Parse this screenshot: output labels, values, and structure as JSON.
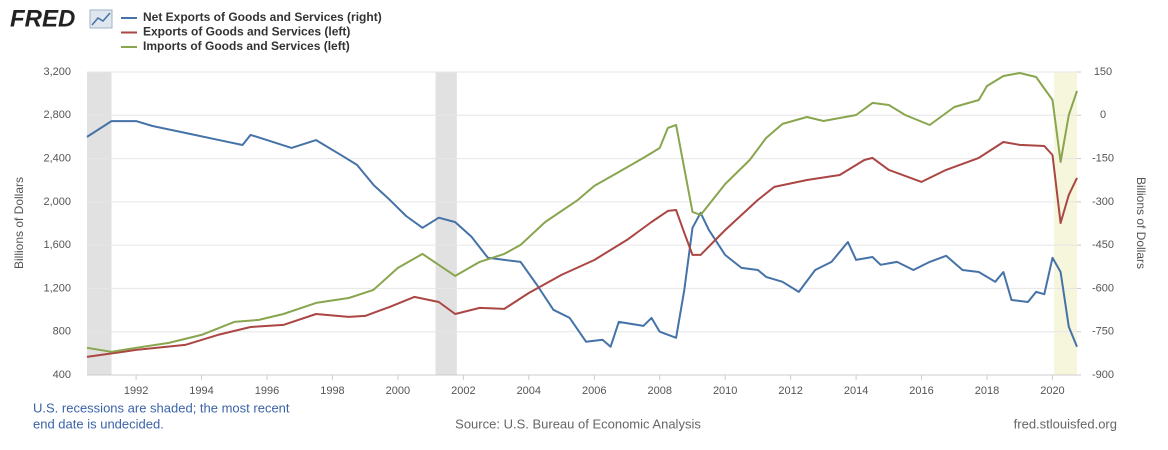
{
  "chart_data": {
    "type": "line",
    "logo": "FRED",
    "ylabel": "Billions of Dollars",
    "y2label": "Billions of Dollars",
    "footnote": [
      "U.S. recessions are shaded; the most recent",
      "end date is undecided."
    ],
    "source": "Source: U.S. Bureau of Economic Analysis",
    "site": "fred.stlouisfed.org",
    "xlim": [
      1990.5,
      2020.75
    ],
    "xticks": [
      1992,
      1994,
      1996,
      1998,
      2000,
      2002,
      2004,
      2006,
      2008,
      2010,
      2012,
      2014,
      2016,
      2018,
      2020
    ],
    "ylim": [
      400,
      3200
    ],
    "yticks": [
      400,
      800,
      {
        "value": 1200,
        "label": "1,200"
      },
      {
        "value": 1600,
        "label": "1,600"
      },
      {
        "value": 2000,
        "label": "2,000"
      },
      {
        "value": 2400,
        "label": "2,400"
      },
      {
        "value": 2800,
        "label": "2,800"
      },
      {
        "value": 3200,
        "label": "3,200"
      }
    ],
    "y2lim": [
      -900,
      150
    ],
    "y2ticks": [
      -900,
      -750,
      -600,
      -450,
      -300,
      -150,
      0,
      150
    ],
    "grid": true,
    "recessions": [
      [
        1990.5,
        1991.25
      ],
      [
        2001.15,
        2001.8
      ]
    ],
    "recessions_color": "#e1e1e1",
    "recent_recession": [
      2020.05,
      2020.75
    ],
    "recent_recession_color": "#f6f6dc",
    "series": [
      {
        "name": "Net Exports of Goods and Services (right)",
        "color": "#4572a7",
        "axis": "y2",
        "x": [
          1990.5,
          1991.25,
          1992,
          1992.5,
          1993.5,
          1994.5,
          1995.25,
          1995.5,
          1996,
          1996.75,
          1997.5,
          1998.25,
          1998.75,
          1999.25,
          1999.75,
          2000.25,
          2000.75,
          2001.25,
          2001.75,
          2002.25,
          2002.75,
          2003.25,
          2003.75,
          2004.25,
          2004.75,
          2005.25,
          2005.75,
          2006.25,
          2006.5,
          2006.75,
          2007.5,
          2007.75,
          2008,
          2008.5,
          2008.75,
          2009,
          2009.25,
          2009.5,
          2010,
          2010.5,
          2011,
          2011.25,
          2011.75,
          2012.25,
          2012.75,
          2013.25,
          2013.75,
          2014,
          2014.5,
          2014.75,
          2015.25,
          2015.75,
          2016.25,
          2016.75,
          2017.25,
          2017.75,
          2018.25,
          2018.5,
          2018.75,
          2019.25,
          2019.5,
          2019.75,
          2020,
          2020.25,
          2020.5,
          2020.75
        ],
        "values": [
          -75,
          -20,
          -20,
          -37,
          -61,
          -85,
          -103,
          -68,
          -86,
          -113,
          -86,
          -137,
          -172,
          -241,
          -293,
          -349,
          -390,
          -355,
          -370,
          -421,
          -494,
          -501,
          -508,
          -588,
          -674,
          -702,
          -785,
          -778,
          -802,
          -716,
          -730,
          -702,
          -750,
          -771,
          -605,
          -390,
          -338,
          -397,
          -484,
          -529,
          -536,
          -560,
          -577,
          -612,
          -536,
          -508,
          -439,
          -501,
          -491,
          -518,
          -508,
          -536,
          -508,
          -487,
          -536,
          -543,
          -577,
          -543,
          -640,
          -647,
          -612,
          -620,
          -494,
          -543,
          -733,
          -802
        ]
      },
      {
        "name": "Exports of Goods and Services (left)",
        "color": "#aa4643",
        "x": [
          1990.5,
          1992,
          1993.5,
          1994.5,
          1995.5,
          1996.5,
          1997.5,
          1998.5,
          1999,
          1999.75,
          2000.5,
          2001.25,
          2001.75,
          2002.5,
          2003.25,
          2004,
          2005,
          2006,
          2007,
          2007.75,
          2008.25,
          2008.5,
          2008.75,
          2009,
          2009.25,
          2010,
          2011,
          2011.5,
          2012.5,
          2013.5,
          2014.25,
          2014.5,
          2015,
          2016,
          2016.75,
          2017.75,
          2018.5,
          2019,
          2019.75,
          2020,
          2020.25,
          2020.5,
          2020.75
        ],
        "values": [
          567,
          632,
          678,
          771,
          844,
          863,
          964,
          937,
          946,
          1029,
          1122,
          1075,
          964,
          1020,
          1011,
          1158,
          1325,
          1463,
          1648,
          1814,
          1916,
          1925,
          1713,
          1510,
          1510,
          1740,
          2018,
          2138,
          2202,
          2248,
          2387,
          2406,
          2295,
          2184,
          2295,
          2406,
          2553,
          2526,
          2516,
          2433,
          1805,
          2064,
          2221
        ]
      },
      {
        "name": "Imports of Goods and Services (left)",
        "color": "#89a54e",
        "x": [
          1990.5,
          1991.25,
          1992,
          1993,
          1994,
          1995,
          1995.75,
          1996.5,
          1997.5,
          1998.5,
          1999.25,
          2000,
          2000.75,
          2001.25,
          2001.75,
          2002.5,
          2003.25,
          2003.75,
          2004.5,
          2005.5,
          2006,
          2006.75,
          2007.5,
          2008,
          2008.25,
          2008.5,
          2009,
          2009.25,
          2010,
          2010.75,
          2011.25,
          2011.75,
          2012.5,
          2013,
          2014,
          2014.5,
          2015,
          2015.5,
          2016.25,
          2017,
          2017.75,
          2018,
          2018.5,
          2019,
          2019.5,
          2020,
          2020.25,
          2020.5,
          2020.75
        ],
        "values": [
          651,
          614,
          651,
          697,
          771,
          891,
          909,
          964,
          1066,
          1112,
          1186,
          1390,
          1519,
          1417,
          1316,
          1445,
          1519,
          1602,
          1814,
          2018,
          2147,
          2276,
          2406,
          2498,
          2683,
          2710,
          1907,
          1879,
          2165,
          2387,
          2590,
          2720,
          2784,
          2747,
          2803,
          2914,
          2895,
          2803,
          2710,
          2877,
          2941,
          3071,
          3163,
          3191,
          3154,
          2941,
          2369,
          2803,
          3025
        ]
      }
    ]
  }
}
